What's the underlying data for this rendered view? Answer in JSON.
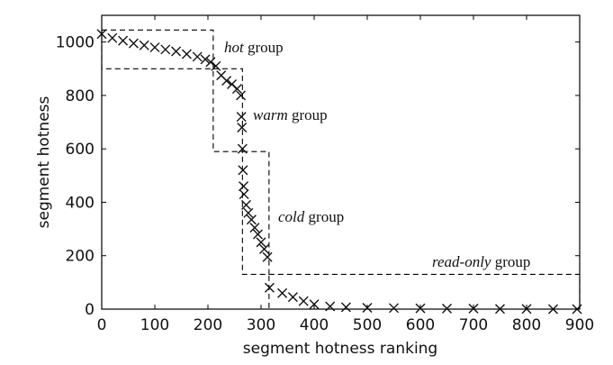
{
  "chart_data": {
    "type": "scatter",
    "title": "",
    "xlabel": "segment hotness ranking",
    "ylabel": "segment hotness",
    "xlim": [
      0,
      900
    ],
    "ylim": [
      0,
      1100
    ],
    "xticks": [
      "0",
      "100",
      "200",
      "300",
      "400",
      "500",
      "600",
      "700",
      "800",
      "900"
    ],
    "yticks": [
      "0",
      "200",
      "400",
      "600",
      "800",
      "1000"
    ],
    "grid": false,
    "marker": "x",
    "series": [
      {
        "points": [
          [
            0,
            1030
          ],
          [
            20,
            1015
          ],
          [
            40,
            1005
          ],
          [
            60,
            995
          ],
          [
            80,
            988
          ],
          [
            100,
            980
          ],
          [
            120,
            972
          ],
          [
            140,
            965
          ],
          [
            160,
            955
          ],
          [
            180,
            945
          ],
          [
            195,
            935
          ],
          [
            205,
            925
          ],
          [
            215,
            910
          ],
          [
            225,
            875
          ],
          [
            235,
            855
          ],
          [
            245,
            842
          ],
          [
            255,
            825
          ],
          [
            262,
            800
          ],
          [
            263,
            720
          ],
          [
            264,
            680
          ],
          [
            265,
            600
          ],
          [
            266,
            520
          ],
          [
            267,
            460
          ],
          [
            268,
            430
          ],
          [
            272,
            390
          ],
          [
            276,
            360
          ],
          [
            282,
            335
          ],
          [
            288,
            305
          ],
          [
            294,
            280
          ],
          [
            300,
            250
          ],
          [
            306,
            225
          ],
          [
            312,
            195
          ],
          [
            316,
            80
          ],
          [
            340,
            60
          ],
          [
            360,
            45
          ],
          [
            380,
            30
          ],
          [
            400,
            18
          ],
          [
            430,
            10
          ],
          [
            460,
            7
          ],
          [
            500,
            5
          ],
          [
            550,
            4
          ],
          [
            600,
            3
          ],
          [
            650,
            2
          ],
          [
            700,
            2
          ],
          [
            750,
            1
          ],
          [
            800,
            1
          ],
          [
            850,
            0
          ],
          [
            895,
            0
          ]
        ]
      }
    ],
    "annotations": [
      {
        "emph": "hot",
        "rest": " group"
      },
      {
        "emph": "warm",
        "rest": " group"
      },
      {
        "emph": "cold",
        "rest": " group"
      },
      {
        "emph": "read-only",
        "rest": " group"
      }
    ],
    "group_boxes": [
      {
        "x": [
          0,
          210
        ],
        "y": [
          900,
          1045
        ]
      },
      {
        "x": [
          210,
          265
        ],
        "y": [
          590,
          900
        ]
      },
      {
        "x": [
          265,
          315
        ],
        "y": [
          130,
          590
        ]
      },
      {
        "x": [
          315,
          900
        ],
        "y": [
          0,
          130
        ]
      }
    ]
  }
}
